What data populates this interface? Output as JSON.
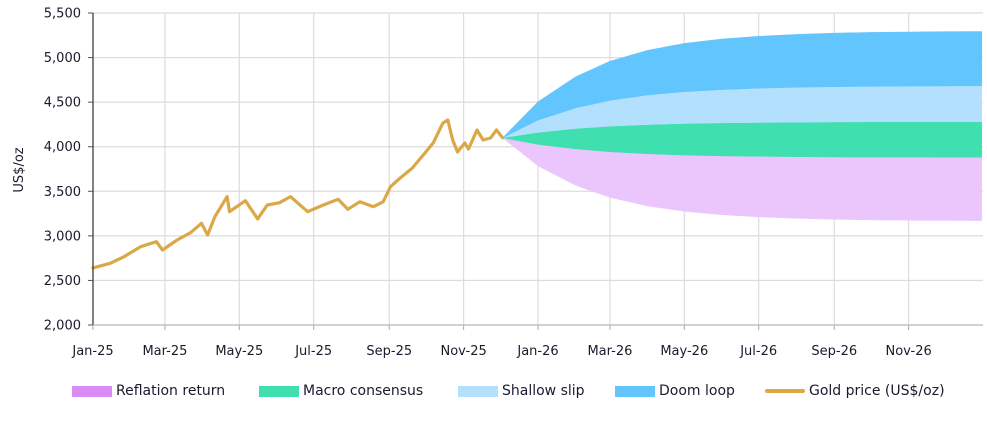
{
  "chart_data": {
    "type": "area",
    "title": "",
    "xlabel": "",
    "ylabel": "US$/oz",
    "ylim": [
      2000,
      5500
    ],
    "xlim": [
      "2025-01-01",
      "2027-01-01"
    ],
    "grid": true,
    "legend_position": "bottom",
    "y_ticks": [
      "2,000",
      "2,500",
      "3,000",
      "3,500",
      "4,000",
      "4,500",
      "5,000",
      "5,500"
    ],
    "y_tick_values": [
      2000,
      2500,
      3000,
      3500,
      4000,
      4500,
      5000,
      5500
    ],
    "x_ticks": [
      "Jan-25",
      "Mar-25",
      "May-25",
      "Jul-25",
      "Sep-25",
      "Nov-25",
      "Jan-26",
      "Mar-26",
      "May-26",
      "Jul-26",
      "Sep-26",
      "Nov-26"
    ],
    "x_tick_dates": [
      "2025-01-01",
      "2025-03-01",
      "2025-05-01",
      "2025-07-01",
      "2025-09-01",
      "2025-11-01",
      "2026-01-01",
      "2026-03-01",
      "2026-05-01",
      "2026-07-01",
      "2026-09-01",
      "2026-11-01"
    ],
    "gold": {
      "name": "Gold price (US$/oz)",
      "color": "#dba847",
      "x": [
        "2025-01-01",
        "2025-01-15",
        "2025-01-26",
        "2025-02-09",
        "2025-02-22",
        "2025-02-27",
        "2025-03-11",
        "2025-03-22",
        "2025-03-31",
        "2025-04-05",
        "2025-04-11",
        "2025-04-21",
        "2025-04-23",
        "2025-05-06",
        "2025-05-16",
        "2025-05-24",
        "2025-06-03",
        "2025-06-12",
        "2025-06-26",
        "2025-07-09",
        "2025-07-21",
        "2025-07-29",
        "2025-08-08",
        "2025-08-19",
        "2025-08-27",
        "2025-09-02",
        "2025-09-10",
        "2025-09-20",
        "2025-10-07",
        "2025-10-15",
        "2025-10-19",
        "2025-10-23",
        "2025-10-27",
        "2025-11-02",
        "2025-11-05",
        "2025-11-12",
        "2025-11-17",
        "2025-11-23",
        "2025-11-28",
        "2025-12-03"
      ],
      "y": [
        2640,
        2692,
        2763,
        2878,
        2934,
        2841,
        2953,
        3035,
        3141,
        3010,
        3215,
        3440,
        3271,
        3394,
        3190,
        3346,
        3372,
        3440,
        3271,
        3346,
        3410,
        3298,
        3383,
        3327,
        3383,
        3551,
        3649,
        3761,
        4042,
        4266,
        4300,
        4075,
        3941,
        4042,
        3974,
        4187,
        4075,
        4098,
        4187,
        4100
      ]
    },
    "bands_x": [
      "2025-12-03",
      "2026-01-01",
      "2026-02-01",
      "2026-03-01",
      "2026-04-01",
      "2026-05-01",
      "2026-06-01",
      "2026-07-01",
      "2026-08-01",
      "2026-09-01",
      "2026-10-01",
      "2026-11-01",
      "2026-12-01",
      "2026-12-31"
    ],
    "series": [
      {
        "name": "Reflation return",
        "color": "#eac6fd",
        "legend_color": "#d98cf5",
        "low": [
          4100,
          3785,
          3566,
          3431,
          3335,
          3275,
          3237,
          3213,
          3197,
          3186,
          3179,
          3175,
          3173,
          3171
        ],
        "high": [
          4100,
          4026,
          3975,
          3943,
          3920,
          3906,
          3897,
          3892,
          3888,
          3885,
          3884,
          3883,
          3882,
          3882
        ]
      },
      {
        "name": "Macro consensus",
        "color": "#3fdfb0",
        "legend_color": "#3fdfb0",
        "low": [
          4100,
          4026,
          3975,
          3943,
          3920,
          3906,
          3897,
          3892,
          3888,
          3885,
          3884,
          3883,
          3882,
          3882
        ],
        "high": [
          4100,
          4161,
          4204,
          4230,
          4248,
          4260,
          4267,
          4272,
          4275,
          4277,
          4279,
          4279,
          4280,
          4280
        ]
      },
      {
        "name": "Shallow slip",
        "color": "#b3e1fd",
        "legend_color": "#b3e1fd",
        "low": [
          4100,
          4161,
          4204,
          4230,
          4248,
          4260,
          4267,
          4272,
          4275,
          4277,
          4279,
          4279,
          4280,
          4280
        ],
        "high": [
          4100,
          4298,
          4435,
          4519,
          4580,
          4617,
          4641,
          4656,
          4666,
          4673,
          4677,
          4680,
          4681,
          4683
        ]
      },
      {
        "name": "Doom loop",
        "color": "#62c5fd",
        "legend_color": "#62c5fd",
        "low": [
          4100,
          4298,
          4435,
          4519,
          4580,
          4617,
          4641,
          4656,
          4666,
          4673,
          4677,
          4680,
          4681,
          4683
        ],
        "high": [
          4100,
          4505,
          4785,
          4959,
          5082,
          5159,
          5208,
          5239,
          5260,
          5274,
          5282,
          5287,
          5291,
          5293
        ]
      }
    ]
  }
}
